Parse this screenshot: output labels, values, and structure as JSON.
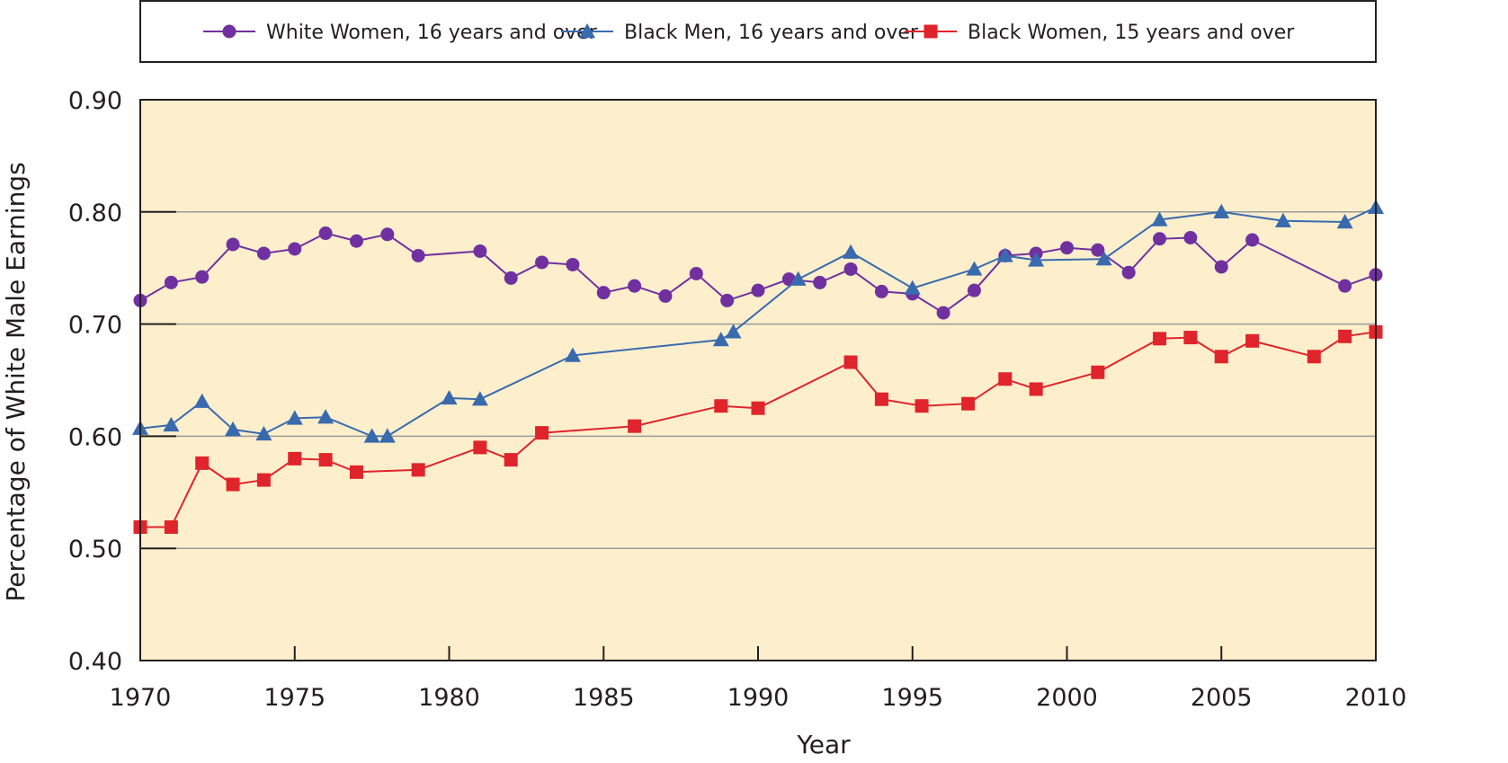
{
  "chart_data": {
    "type": "line",
    "title": "",
    "xlabel": "Year",
    "ylabel": "Percentage of White Male Earnings",
    "xlim": [
      1970,
      2010
    ],
    "ylim": [
      0.4,
      0.9
    ],
    "xticks": [
      "1970",
      "1975",
      "1980",
      "1985",
      "1990",
      "1995",
      "2000",
      "2005",
      "2010"
    ],
    "yticks": [
      "0.40",
      "0.50",
      "0.60",
      "0.70",
      "0.80",
      "0.90"
    ],
    "grid": "horizontal",
    "legend_position": "top",
    "background_color": "#fdefcc",
    "series": [
      {
        "name": "White Women, 16 years and over",
        "color": "#7030a0",
        "marker": "circle",
        "points": [
          [
            1970,
            0.721
          ],
          [
            1971,
            0.737
          ],
          [
            1972,
            0.742
          ],
          [
            1973,
            0.771
          ],
          [
            1974,
            0.763
          ],
          [
            1975,
            0.767
          ],
          [
            1976,
            0.781
          ],
          [
            1977,
            0.774
          ],
          [
            1978,
            0.78
          ],
          [
            1979,
            0.761
          ],
          [
            1981,
            0.765
          ],
          [
            1982,
            0.741
          ],
          [
            1983,
            0.755
          ],
          [
            1984,
            0.753
          ],
          [
            1985,
            0.728
          ],
          [
            1986,
            0.734
          ],
          [
            1987,
            0.725
          ],
          [
            1988,
            0.745
          ],
          [
            1989,
            0.721
          ],
          [
            1990,
            0.73
          ],
          [
            1991,
            0.74
          ],
          [
            1992,
            0.737
          ],
          [
            1993,
            0.749
          ],
          [
            1994,
            0.729
          ],
          [
            1995,
            0.727
          ],
          [
            1996,
            0.71
          ],
          [
            1997,
            0.73
          ],
          [
            1998,
            0.761
          ],
          [
            1999,
            0.763
          ],
          [
            2000,
            0.768
          ],
          [
            2001,
            0.766
          ],
          [
            2002,
            0.746
          ],
          [
            2003,
            0.776
          ],
          [
            2004,
            0.777
          ],
          [
            2005,
            0.751
          ],
          [
            2006,
            0.775
          ],
          [
            2009,
            0.734
          ],
          [
            2010,
            0.744
          ]
        ]
      },
      {
        "name": "Black Men, 16 years and over",
        "color": "#3a6aae",
        "marker": "triangle",
        "points": [
          [
            1970,
            0.607
          ],
          [
            1971,
            0.61
          ],
          [
            1972,
            0.631
          ],
          [
            1973,
            0.606
          ],
          [
            1974,
            0.602
          ],
          [
            1975,
            0.616
          ],
          [
            1976,
            0.617
          ],
          [
            1977.5,
            0.6
          ],
          [
            1978,
            0.6
          ],
          [
            1980,
            0.634
          ],
          [
            1981,
            0.633
          ],
          [
            1984,
            0.672
          ],
          [
            1988.8,
            0.686
          ],
          [
            1989.2,
            0.693
          ],
          [
            1991.3,
            0.74
          ],
          [
            1993,
            0.764
          ],
          [
            1995,
            0.732
          ],
          [
            1997,
            0.749
          ],
          [
            1998,
            0.761
          ],
          [
            1999,
            0.757
          ],
          [
            2001.2,
            0.758
          ],
          [
            2003,
            0.793
          ],
          [
            2005,
            0.8
          ],
          [
            2007,
            0.792
          ],
          [
            2009,
            0.791
          ],
          [
            2010,
            0.804
          ]
        ]
      },
      {
        "name": "Black  Women, 15 years and over",
        "color": "#e0242b",
        "marker": "square",
        "points": [
          [
            1970,
            0.519
          ],
          [
            1971,
            0.519
          ],
          [
            1972,
            0.576
          ],
          [
            1973,
            0.557
          ],
          [
            1974,
            0.561
          ],
          [
            1975,
            0.58
          ],
          [
            1976,
            0.579
          ],
          [
            1977,
            0.568
          ],
          [
            1979,
            0.57
          ],
          [
            1981,
            0.59
          ],
          [
            1982,
            0.579
          ],
          [
            1983,
            0.603
          ],
          [
            1986,
            0.609
          ],
          [
            1988.8,
            0.627
          ],
          [
            1990,
            0.625
          ],
          [
            1993,
            0.666
          ],
          [
            1994,
            0.633
          ],
          [
            1995.3,
            0.627
          ],
          [
            1996.8,
            0.629
          ],
          [
            1998,
            0.651
          ],
          [
            1999,
            0.642
          ],
          [
            2001,
            0.657
          ],
          [
            2003,
            0.687
          ],
          [
            2004,
            0.688
          ],
          [
            2005,
            0.671
          ],
          [
            2006,
            0.685
          ],
          [
            2008,
            0.671
          ],
          [
            2009,
            0.689
          ],
          [
            2010,
            0.693
          ]
        ]
      }
    ]
  }
}
